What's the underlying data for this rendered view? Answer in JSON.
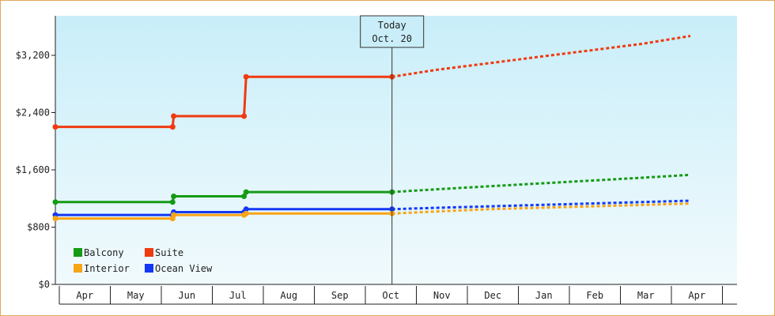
{
  "chart_data": {
    "type": "line",
    "title": "",
    "xlabel": "",
    "ylabel": "",
    "ylim": [
      0,
      3200
    ],
    "yticks": [
      "$0",
      "$800",
      "$1,600",
      "$2,400",
      "$3,200"
    ],
    "ytick_values": [
      0,
      800,
      1600,
      2400,
      3200
    ],
    "months": [
      "Apr",
      "May",
      "Jun",
      "Jul",
      "Aug",
      "Sep",
      "Oct",
      "Nov",
      "Dec",
      "Jan",
      "Feb",
      "Mar",
      "Apr"
    ],
    "today_marker": {
      "line1": "Today",
      "line2": "Oct. 20",
      "x": 6.6
    },
    "legend": {
      "placement": "bottom-left",
      "entries": [
        {
          "label": "Balcony",
          "color": "#159a15"
        },
        {
          "label": "Suite",
          "color": "#f03a10"
        },
        {
          "label": "Interior",
          "color": "#f7a416"
        },
        {
          "label": "Ocean View",
          "color": "#1238f5"
        }
      ]
    },
    "series": [
      {
        "name": "Suite",
        "color": "#f03a10",
        "actual": [
          [
            0,
            2200
          ],
          [
            2.3,
            2200
          ],
          [
            2.32,
            2350
          ],
          [
            3.7,
            2350
          ],
          [
            3.74,
            2900
          ],
          [
            6.6,
            2900
          ]
        ],
        "forecast": [
          [
            6.6,
            2900
          ],
          [
            7.5,
            3000
          ],
          [
            8.5,
            3090
          ],
          [
            9.5,
            3180
          ],
          [
            10.5,
            3270
          ],
          [
            11.5,
            3360
          ],
          [
            12.45,
            3470
          ]
        ]
      },
      {
        "name": "Balcony",
        "color": "#159a15",
        "actual": [
          [
            0,
            1150
          ],
          [
            2.3,
            1150
          ],
          [
            2.32,
            1230
          ],
          [
            3.7,
            1230
          ],
          [
            3.74,
            1290
          ],
          [
            6.6,
            1290
          ]
        ],
        "forecast": [
          [
            6.6,
            1290
          ],
          [
            7.5,
            1330
          ],
          [
            8.5,
            1370
          ],
          [
            9.5,
            1410
          ],
          [
            10.5,
            1450
          ],
          [
            11.5,
            1490
          ],
          [
            12.45,
            1530
          ]
        ]
      },
      {
        "name": "Ocean View",
        "color": "#1238f5",
        "actual": [
          [
            0,
            970
          ],
          [
            2.3,
            970
          ],
          [
            2.32,
            1010
          ],
          [
            3.7,
            1010
          ],
          [
            3.74,
            1050
          ],
          [
            6.6,
            1050
          ]
        ],
        "forecast": [
          [
            6.6,
            1050
          ],
          [
            7.5,
            1070
          ],
          [
            8.5,
            1090
          ],
          [
            9.5,
            1110
          ],
          [
            10.5,
            1130
          ],
          [
            11.5,
            1150
          ],
          [
            12.45,
            1170
          ]
        ]
      },
      {
        "name": "Interior",
        "color": "#f7a416",
        "actual": [
          [
            0,
            920
          ],
          [
            2.3,
            920
          ],
          [
            2.32,
            970
          ],
          [
            3.7,
            970
          ],
          [
            3.74,
            990
          ],
          [
            6.6,
            990
          ]
        ],
        "forecast": [
          [
            6.6,
            990
          ],
          [
            7.5,
            1020
          ],
          [
            8.5,
            1050
          ],
          [
            9.5,
            1070
          ],
          [
            10.5,
            1090
          ],
          [
            11.5,
            1110
          ],
          [
            12.45,
            1130
          ]
        ]
      }
    ]
  }
}
